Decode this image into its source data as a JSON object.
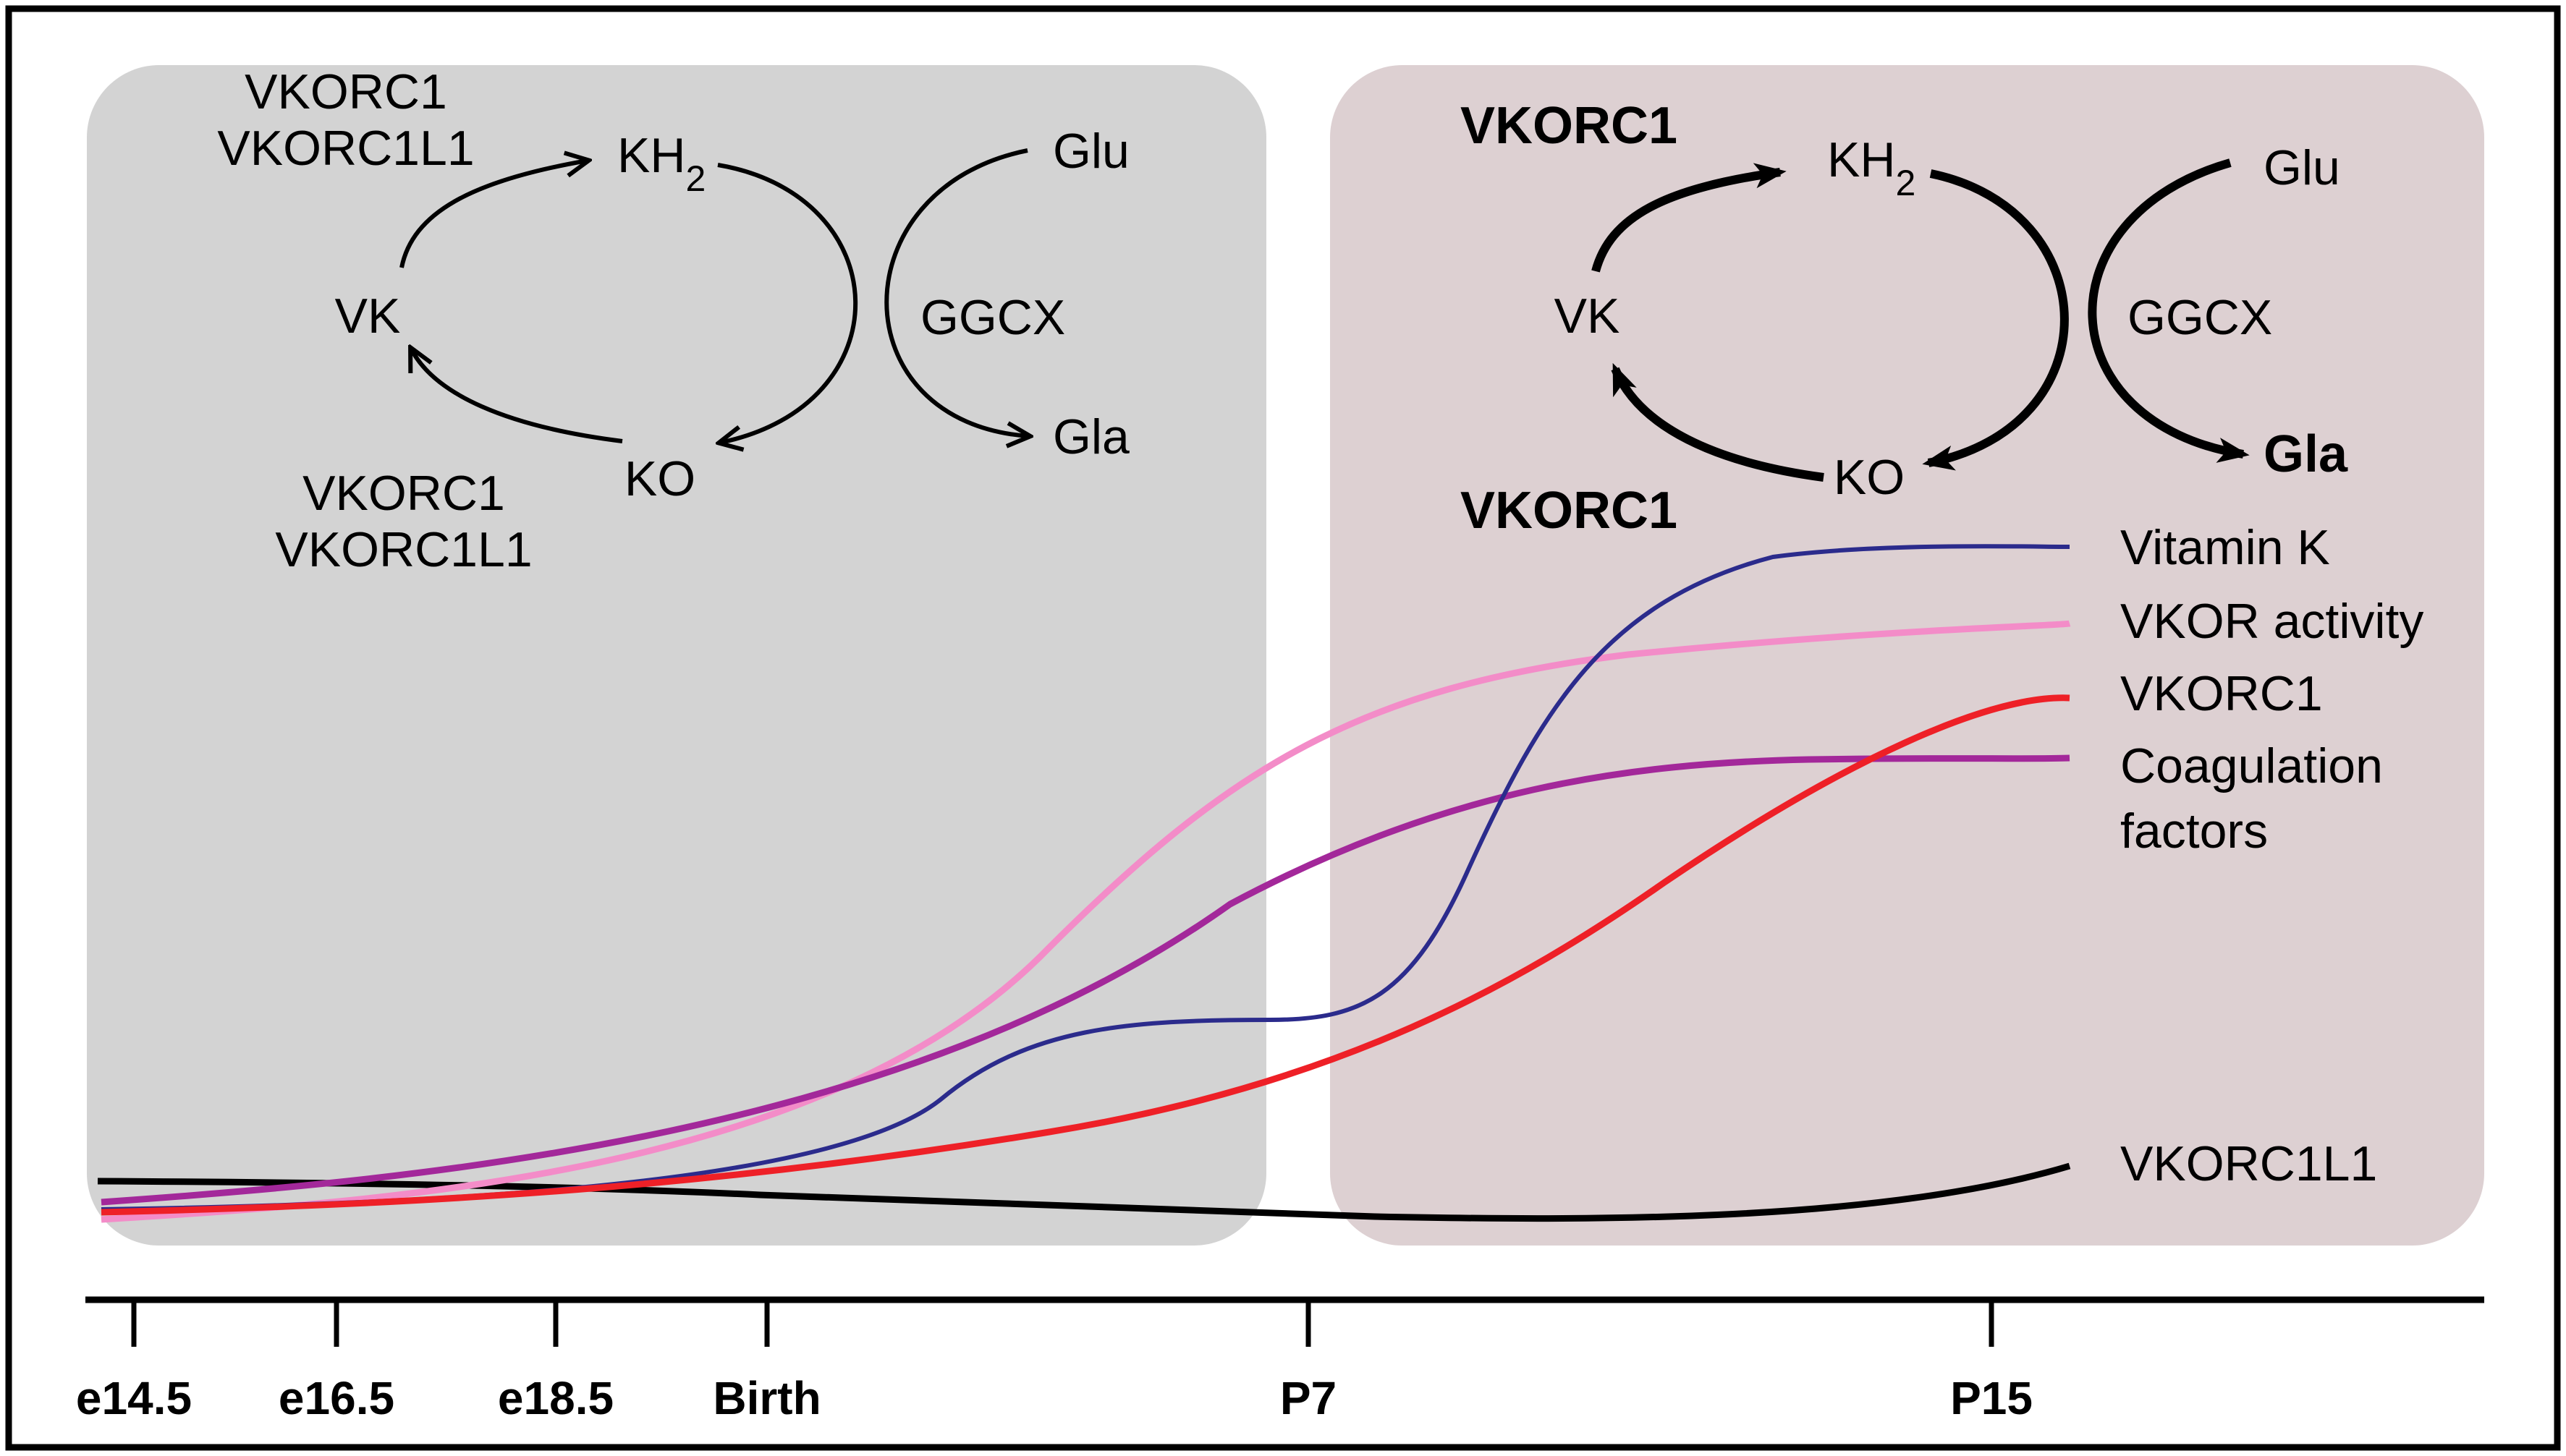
{
  "colors": {
    "panel_prenatal": "#d3d3d3",
    "panel_postnatal": "#ddd0d2",
    "vitamin_k": "#2b2b8c",
    "vkor_activity": "#f38cc8",
    "vkorc1": "#ee2027",
    "coagulation_factors": "#a3289a",
    "vkorc1l1": "#000000"
  },
  "left_cycle": {
    "enzyme_top_1": "VKORC1",
    "enzyme_top_2": "VKORC1L1",
    "kh2_base": "KH",
    "kh2_sub": "2",
    "vk": "VK",
    "ko": "KO",
    "enzyme_bottom_1": "VKORC1",
    "enzyme_bottom_2": "VKORC1L1",
    "glu": "Glu",
    "ggcx": "GGCX",
    "gla": "Gla"
  },
  "right_cycle": {
    "enzyme_top": "VKORC1",
    "kh2_base": "KH",
    "kh2_sub": "2",
    "vk": "VK",
    "ko": "KO",
    "enzyme_bottom": "VKORC1",
    "glu": "Glu",
    "ggcx": "GGCX",
    "gla": "Gla"
  },
  "legend": {
    "vitamin_k": "Vitamin K",
    "vkor_activity": "VKOR activity",
    "vkorc1": "VKORC1",
    "coagulation_1": "Coagulation",
    "coagulation_2": "factors",
    "vkorc1l1": "VKORC1L1"
  },
  "axis": {
    "ticks": [
      "e14.5",
      "e16.5",
      "e18.5",
      "Birth",
      "P7",
      "P15"
    ]
  }
}
